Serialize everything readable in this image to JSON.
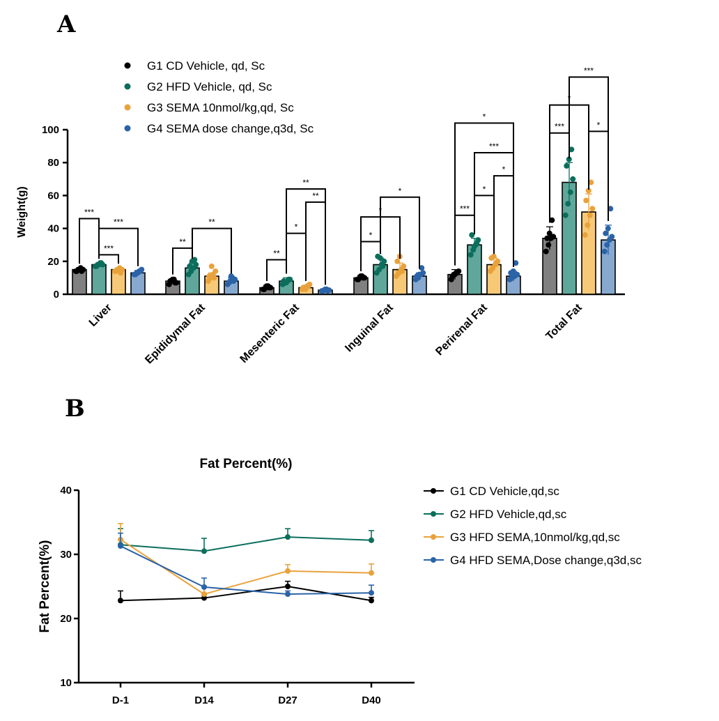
{
  "panel_labels": {
    "a": "A",
    "b": "B"
  },
  "colors": {
    "G1": {
      "fill": "#808080",
      "point": "#000000"
    },
    "G2": {
      "fill": "#5fa79a",
      "point": "#0b6e5c"
    },
    "G3": {
      "fill": "#f7c977",
      "point": "#e9a23b"
    },
    "G4": {
      "fill": "#87a9d0",
      "point": "#2a63a7"
    }
  },
  "chart_data": [
    {
      "type": "bar",
      "title": "",
      "xlabel": "",
      "ylabel": "Weight(g)",
      "ylim": [
        0,
        100
      ],
      "yticks": [
        "0",
        "20",
        "40",
        "60",
        "80",
        "100"
      ],
      "legend_position": "top-left",
      "categories": [
        "Liver",
        "Epididymal Fat",
        "Mesenteric Fat",
        "Inguinal Fat",
        "Perirenal Fat",
        "Total Fat"
      ],
      "series": [
        {
          "key": "G1",
          "name": "G1 CD Vehicle, qd,  Sc",
          "values": [
            15,
            8,
            4,
            10,
            12,
            34
          ],
          "errors": [
            1,
            1.5,
            1.5,
            1.5,
            3,
            7
          ],
          "points": [
            [
              14,
              15,
              16,
              15,
              14,
              15,
              14
            ],
            [
              6,
              8,
              9,
              7,
              8,
              9,
              7
            ],
            [
              3,
              4,
              5,
              4,
              3,
              5,
              4
            ],
            [
              9,
              10,
              11,
              10,
              9,
              11,
              10
            ],
            [
              9,
              12,
              13,
              14,
              11,
              12,
              13
            ],
            [
              26,
              30,
              34,
              35,
              34,
              37,
              45
            ]
          ]
        },
        {
          "key": "G2",
          "name": "G2 HFD Vehicle, qd,  Sc",
          "values": [
            18,
            16,
            8,
            18,
            30,
            68
          ],
          "errors": [
            1,
            3,
            2,
            4,
            4,
            12
          ],
          "points": [
            [
              17,
              18,
              19,
              18,
              17,
              18,
              19
            ],
            [
              12,
              14,
              16,
              18,
              17,
              20,
              21
            ],
            [
              6,
              7,
              8,
              9,
              8,
              7,
              9
            ],
            [
              13,
              15,
              18,
              20,
              23,
              22,
              17
            ],
            [
              24,
              27,
              30,
              33,
              36,
              29,
              31
            ],
            [
              48,
              55,
              62,
              70,
              78,
              82,
              88
            ]
          ]
        },
        {
          "key": "G3",
          "name": "G3 SEMA 10nmol/kg,qd,  Sc",
          "values": [
            15,
            11,
            4,
            15,
            18,
            50
          ],
          "errors": [
            1,
            2,
            1.5,
            4,
            4,
            11
          ],
          "points": [
            [
              14,
              15,
              16,
              15,
              14,
              15,
              13
            ],
            [
              8,
              10,
              12,
              14,
              11,
              17,
              10
            ],
            [
              3,
              4,
              5,
              6,
              4,
              3,
              5
            ],
            [
              11,
              13,
              15,
              17,
              20,
              23,
              14
            ],
            [
              14,
              16,
              18,
              20,
              22,
              23,
              19
            ],
            [
              36,
              42,
              48,
              52,
              57,
              63,
              68
            ]
          ]
        },
        {
          "key": "G4",
          "name": "G4  SEMA dose change,q3d,  Sc",
          "values": [
            13,
            8,
            2.5,
            11,
            11,
            33
          ],
          "errors": [
            1.5,
            2,
            0.7,
            2,
            3,
            9
          ],
          "points": [
            [
              12,
              13,
              14,
              15,
              12,
              13,
              14
            ],
            [
              6,
              8,
              10,
              9,
              7,
              11,
              8
            ],
            [
              2,
              2.5,
              3,
              2.5,
              2,
              3,
              2
            ],
            [
              9,
              10,
              12,
              13,
              11,
              12,
              16
            ],
            [
              9,
              10,
              11,
              12,
              13,
              14,
              19
            ],
            [
              26,
              30,
              33,
              35,
              37,
              40,
              52
            ]
          ]
        }
      ],
      "significance": [
        {
          "cat": 0,
          "from": 0,
          "to": 1,
          "y": 46,
          "label": "***"
        },
        {
          "cat": 0,
          "from": 1,
          "to": 3,
          "y": 40,
          "label": "***"
        },
        {
          "cat": 0,
          "from": 1,
          "to": 2,
          "y": 24,
          "label": "***"
        },
        {
          "cat": 1,
          "from": 0,
          "to": 1,
          "y": 28,
          "label": "**"
        },
        {
          "cat": 1,
          "from": 1,
          "to": 3,
          "y": 40,
          "label": "**"
        },
        {
          "cat": 2,
          "from": 0,
          "to": 1,
          "y": 21,
          "label": "**"
        },
        {
          "cat": 2,
          "from": 1,
          "to": 2,
          "y": 37,
          "label": "*"
        },
        {
          "cat": 2,
          "from": 1,
          "to": 3,
          "y": 64,
          "label": "**"
        },
        {
          "cat": 2,
          "from": 2,
          "to": 3,
          "y": 56,
          "label": "**"
        },
        {
          "cat": 3,
          "from": 0,
          "to": 1,
          "y": 32,
          "label": "*"
        },
        {
          "cat": 3,
          "from": 0,
          "to": 2,
          "y": 47,
          "label": "*"
        },
        {
          "cat": 3,
          "from": 1,
          "to": 3,
          "y": 59,
          "label": "*"
        },
        {
          "cat": 4,
          "from": 0,
          "to": 1,
          "y": 48,
          "label": "***"
        },
        {
          "cat": 4,
          "from": 0,
          "to": 3,
          "y": 104,
          "label": "*"
        },
        {
          "cat": 4,
          "from": 1,
          "to": 2,
          "y": 60,
          "label": "*"
        },
        {
          "cat": 4,
          "from": 1,
          "to": 3,
          "y": 86,
          "label": "***"
        },
        {
          "cat": 4,
          "from": 2,
          "to": 3,
          "y": 72,
          "label": "*"
        },
        {
          "cat": 5,
          "from": 0,
          "to": 1,
          "y": 98,
          "label": "***"
        },
        {
          "cat": 5,
          "from": 0,
          "to": 2,
          "y": 115,
          "label": "*"
        },
        {
          "cat": 5,
          "from": 1,
          "to": 3,
          "y": 132,
          "label": "***"
        },
        {
          "cat": 5,
          "from": 2,
          "to": 3,
          "y": 99,
          "label": "*"
        }
      ]
    },
    {
      "type": "line",
      "title": "Fat Percent(%)",
      "xlabel": "",
      "ylabel": "Fat Percent(%)",
      "ylim": [
        10,
        40
      ],
      "yticks": [
        "10",
        "20",
        "30",
        "40"
      ],
      "x": [
        "D-1",
        "D14",
        "D27",
        "D40"
      ],
      "legend_position": "right",
      "series": [
        {
          "key": "G1",
          "name": "G1 CD Vehicle,qd,sc",
          "color": "#000000",
          "values": [
            22.8,
            23.2,
            25.0,
            22.8
          ],
          "errors": [
            1.5,
            0.5,
            0.8,
            0.5
          ]
        },
        {
          "key": "G2",
          "name": "G2 HFD Vehicle,qd,sc",
          "color": "#0b6e5c",
          "values": [
            31.5,
            30.5,
            32.7,
            32.2
          ],
          "errors": [
            2.5,
            2.0,
            1.3,
            1.5
          ]
        },
        {
          "key": "G3",
          "name": "G3 HFD SEMA,10nmol/kg,qd,sc",
          "color": "#e9a23b",
          "values": [
            32.3,
            23.8,
            27.4,
            27.1
          ],
          "errors": [
            2.5,
            1.3,
            1.0,
            1.4
          ]
        },
        {
          "key": "G4",
          "name": "G4 HFD SEMA,Dose change,q3d,sc",
          "color": "#2a63a7",
          "values": [
            31.3,
            24.9,
            23.8,
            24.0
          ],
          "errors": [
            2.0,
            1.4,
            0.5,
            1.2
          ]
        }
      ]
    }
  ]
}
